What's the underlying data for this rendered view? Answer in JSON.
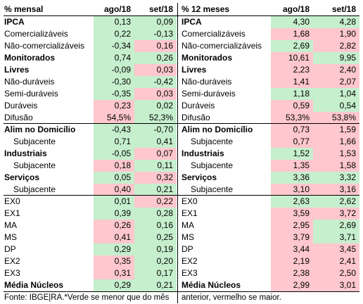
{
  "header": {
    "left_title": "% mensal",
    "left_col1": "ago/18",
    "left_col2": "set/18",
    "right_title": "% 12 meses",
    "right_col1": "ago/18",
    "right_col2": "set/18"
  },
  "rows": [
    {
      "label": "IPCA",
      "bold": true,
      "indent": false,
      "m1": "0,13",
      "m1c": "g",
      "m2": "0,09",
      "m2c": "g",
      "y1": "4,30",
      "y1c": "g",
      "y2": "4,28",
      "y2c": "g"
    },
    {
      "label": "Comercializáveis",
      "bold": false,
      "indent": false,
      "m1": "0,22",
      "m1c": "g",
      "m2": "-0,13",
      "m2c": "g",
      "y1": "1,68",
      "y1c": "r",
      "y2": "1,90",
      "y2c": "r"
    },
    {
      "label": "Não-comercializáveis",
      "bold": false,
      "indent": false,
      "m1": "-0,34",
      "m1c": "g",
      "m2": "0,16",
      "m2c": "r",
      "y1": "2,69",
      "y1c": "g",
      "y2": "2,82",
      "y2c": "r"
    },
    {
      "label": "Monitorados",
      "bold": true,
      "indent": false,
      "m1": "0,74",
      "m1c": "g",
      "m2": "0,26",
      "m2c": "g",
      "y1": "10,61",
      "y1c": "r",
      "y2": "9,95",
      "y2c": "g"
    },
    {
      "label": "Livres",
      "bold": true,
      "indent": false,
      "m1": "-0,09",
      "m1c": "g",
      "m2": "0,03",
      "m2c": "r",
      "y1": "2,23",
      "y1c": "r",
      "y2": "2,40",
      "y2c": "r"
    },
    {
      "label": "Não-duráveis",
      "bold": false,
      "indent": false,
      "m1": "-0,30",
      "m1c": "g",
      "m2": "-0,42",
      "m2c": "g",
      "y1": "1,41",
      "y1c": "r",
      "y2": "2,07",
      "y2c": "r"
    },
    {
      "label": "Semi-duráveis",
      "bold": false,
      "indent": false,
      "m1": "-0,35",
      "m1c": "g",
      "m2": "0,03",
      "m2c": "r",
      "y1": "1,18",
      "y1c": "g",
      "y2": "1,04",
      "y2c": "g"
    },
    {
      "label": "Duráveis",
      "bold": false,
      "indent": false,
      "m1": "0,23",
      "m1c": "r",
      "m2": "0,02",
      "m2c": "g",
      "y1": "0,59",
      "y1c": "r",
      "y2": "0,54",
      "y2c": "g"
    },
    {
      "label": "Difusão",
      "bold": false,
      "indent": false,
      "m1": "54,5%",
      "m1c": "r",
      "m2": "52,3%",
      "m2c": "g",
      "y1": "53,3%",
      "y1c": "r",
      "y2": "53,8%",
      "y2c": "r",
      "sep": true
    },
    {
      "label": "Alim no Domicílio",
      "bold": true,
      "indent": false,
      "m1": "-0,43",
      "m1c": "g",
      "m2": "-0,70",
      "m2c": "g",
      "y1": "0,73",
      "y1c": "r",
      "y2": "1,59",
      "y2c": "r"
    },
    {
      "label": "Subjacente",
      "bold": false,
      "indent": true,
      "m1": "0,71",
      "m1c": "g",
      "m2": "0,41",
      "m2c": "g",
      "y1": "0,77",
      "y1c": "r",
      "y2": "1,66",
      "y2c": "r"
    },
    {
      "label": "Industriais",
      "bold": true,
      "indent": false,
      "m1": "-0,05",
      "m1c": "g",
      "m2": "0,07",
      "m2c": "r",
      "y1": "1,52",
      "y1c": "g",
      "y2": "1,53",
      "y2c": "r"
    },
    {
      "label": "Subjacente",
      "bold": false,
      "indent": true,
      "m1": "0,18",
      "m1c": "r",
      "m2": "0,11",
      "m2c": "g",
      "y1": "1,35",
      "y1c": "r",
      "y2": "1,58",
      "y2c": "r"
    },
    {
      "label": "Serviços",
      "bold": true,
      "indent": false,
      "m1": "0,05",
      "m1c": "g",
      "m2": "0,32",
      "m2c": "r",
      "y1": "3,36",
      "y1c": "g",
      "y2": "3,32",
      "y2c": "g"
    },
    {
      "label": "Subjacente",
      "bold": false,
      "indent": true,
      "m1": "0,40",
      "m1c": "r",
      "m2": "0,21",
      "m2c": "g",
      "y1": "3,10",
      "y1c": "r",
      "y2": "3,16",
      "y2c": "r",
      "sep": true
    },
    {
      "label": "EX0",
      "bold": false,
      "indent": false,
      "m1": "0,01",
      "m1c": "g",
      "m2": "0,22",
      "m2c": "r",
      "y1": "2,63",
      "y1c": "g",
      "y2": "2,62",
      "y2c": "g"
    },
    {
      "label": "EX1",
      "bold": false,
      "indent": false,
      "m1": "0,39",
      "m1c": "g",
      "m2": "0,28",
      "m2c": "g",
      "y1": "3,59",
      "y1c": "r",
      "y2": "3,72",
      "y2c": "r"
    },
    {
      "label": "MA",
      "bold": false,
      "indent": false,
      "m1": "0,26",
      "m1c": "r",
      "m2": "0,16",
      "m2c": "g",
      "y1": "2,95",
      "y1c": "r",
      "y2": "2,69",
      "y2c": "g"
    },
    {
      "label": "MS",
      "bold": false,
      "indent": false,
      "m1": "0,41",
      "m1c": "r",
      "m2": "0,25",
      "m2c": "g",
      "y1": "3,79",
      "y1c": "r",
      "y2": "3,71",
      "y2c": "g"
    },
    {
      "label": "DP",
      "bold": false,
      "indent": false,
      "m1": "0,29",
      "m1c": "g",
      "m2": "0,19",
      "m2c": "g",
      "y1": "3,44",
      "y1c": "r",
      "y2": "3,45",
      "y2c": "r"
    },
    {
      "label": "EX2",
      "bold": false,
      "indent": false,
      "m1": "0,35",
      "m1c": "r",
      "m2": "0,20",
      "m2c": "g",
      "y1": "2,19",
      "y1c": "r",
      "y2": "2,41",
      "y2c": "r"
    },
    {
      "label": "EX3",
      "bold": false,
      "indent": false,
      "m1": "0,31",
      "m1c": "r",
      "m2": "0,17",
      "m2c": "g",
      "y1": "2,38",
      "y1c": "r",
      "y2": "2,50",
      "y2c": "r"
    },
    {
      "label": "Média Núcleos",
      "bold": true,
      "indent": false,
      "m1": "0,29",
      "m1c": "g",
      "m2": "0,21",
      "m2c": "g",
      "y1": "2,99",
      "y1c": "r",
      "y2": "3,01",
      "y2c": "r"
    }
  ],
  "footer": {
    "left": "Fonte: IBGE|RA.*Verde se menor que do mês",
    "right": "anterior, vermelho se maior."
  },
  "colors": {
    "green": "#c6efce",
    "red": "#ffc7ce"
  }
}
